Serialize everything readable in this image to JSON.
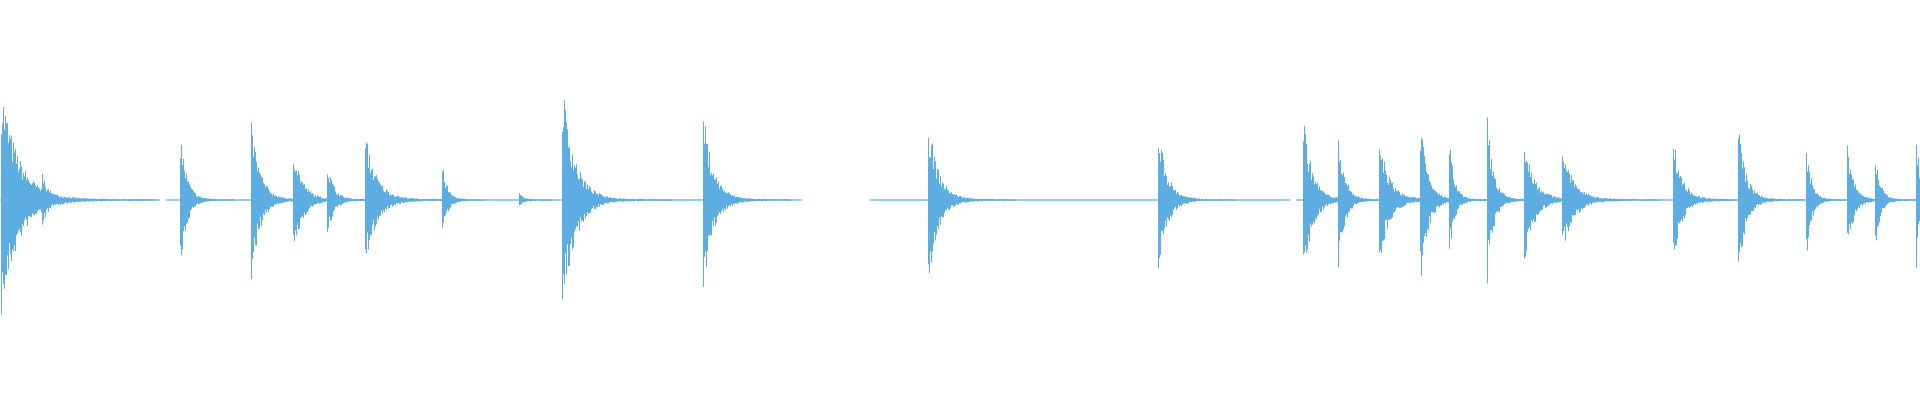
{
  "waveform": {
    "color": "#5dade2",
    "background": "#ffffff"
  }
}
